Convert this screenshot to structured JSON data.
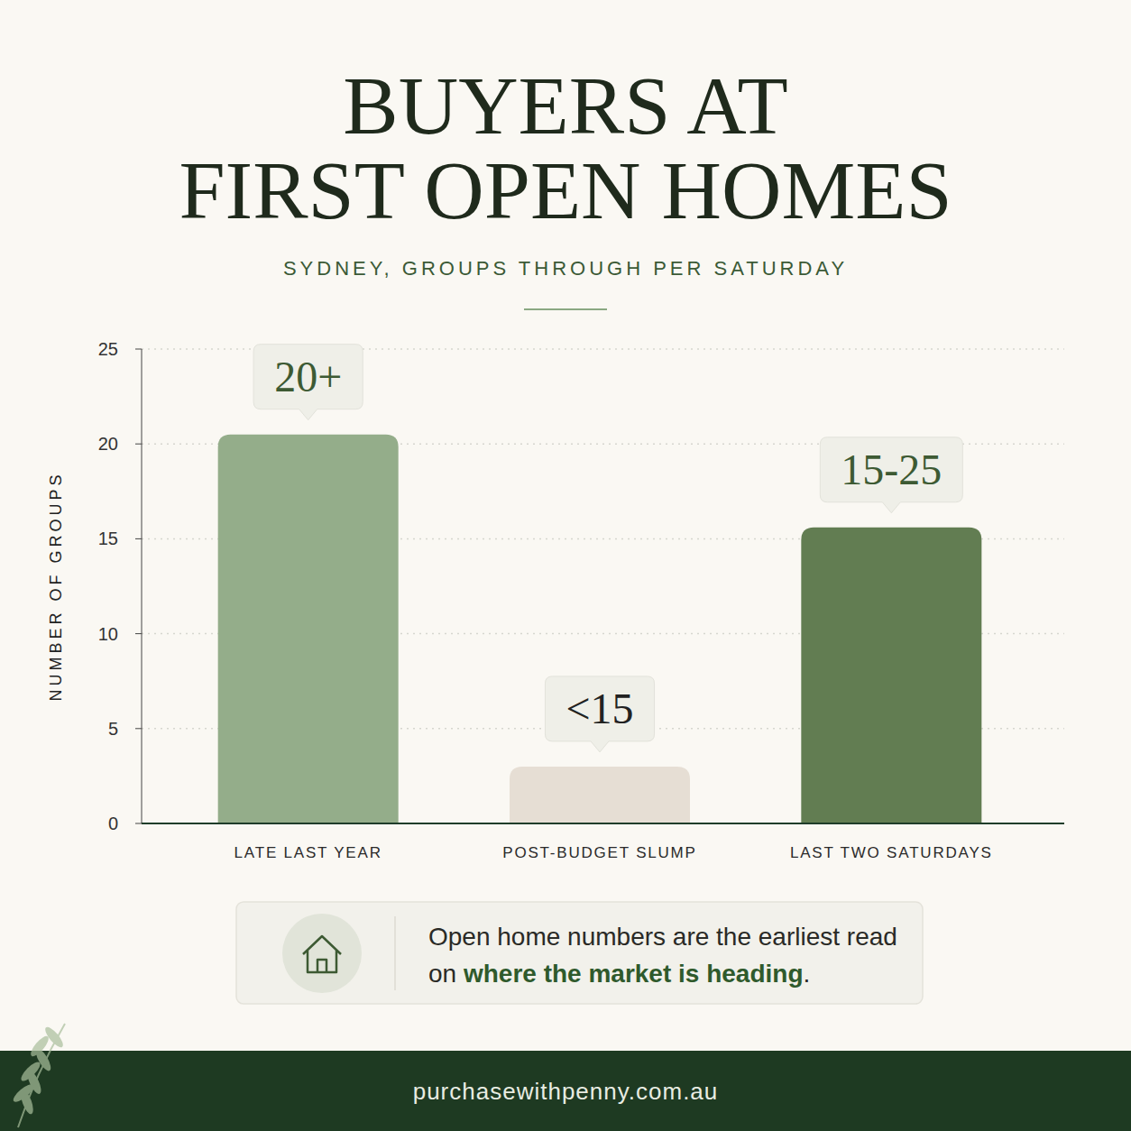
{
  "chart_data": {
    "type": "bar",
    "title": [
      "BUYERS AT",
      "FIRST OPEN HOMES"
    ],
    "subtitle": "SYDNEY, GROUPS THROUGH PER SATURDAY",
    "y_label": "NUMBER OF GROUPS",
    "categories": [
      "LATE LAST YEAR",
      "POST-BUDGET SLUMP",
      "LAST TWO SATURDAYS"
    ],
    "values": [
      20.5,
      3,
      15.6
    ],
    "value_labels": [
      "20+",
      "<15",
      "15-25"
    ],
    "colors": [
      "#94ad8a",
      "#e6ded4",
      "#627d52"
    ],
    "ylim": [
      0,
      25
    ],
    "yticks": [
      0,
      5,
      10,
      15,
      20,
      25
    ],
    "grid": true,
    "data_labels": true,
    "annotation": {
      "text": "Open home numbers are the earliest read on where the market is heading.",
      "highlight": "where the market is heading"
    },
    "footer": "purchasewithpenny.com.au"
  }
}
